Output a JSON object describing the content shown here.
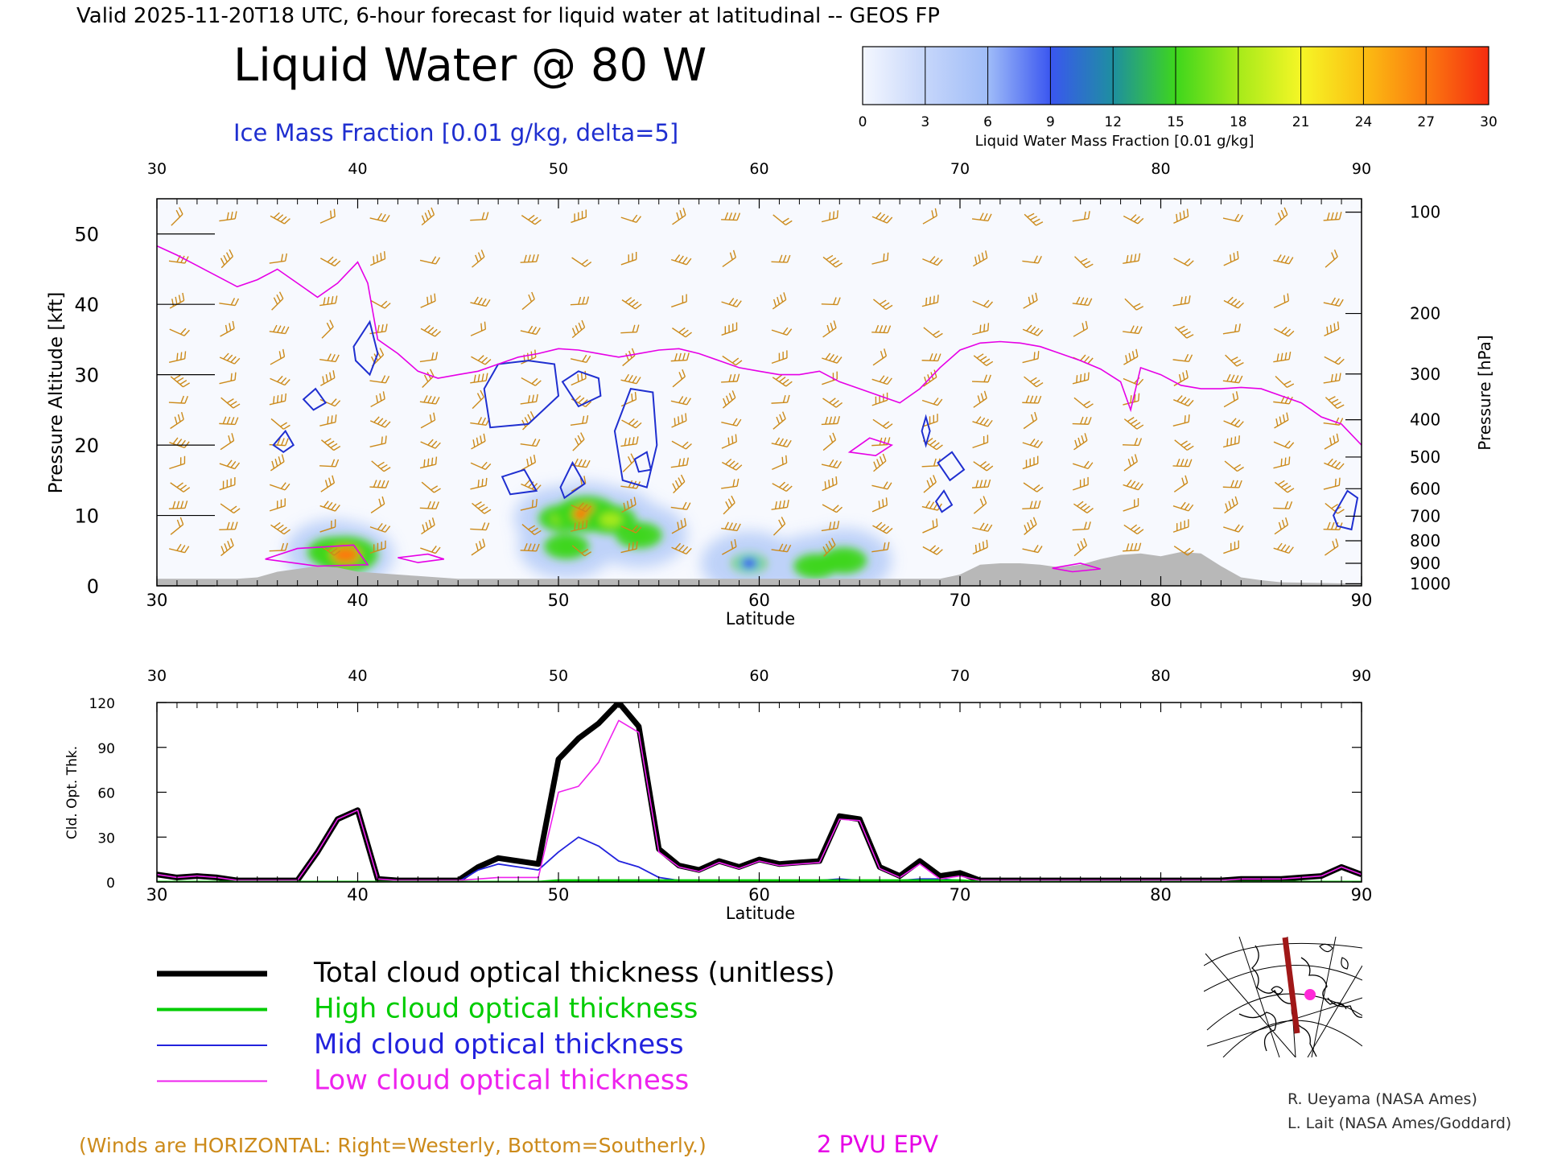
{
  "header": {
    "valid_line": "Valid 2025-11-20T18 UTC, 6-hour forecast for liquid water at latitudinal -- GEOS FP",
    "title": "Liquid Water @ 80 W",
    "subtitle": "Ice Mass Fraction [0.01 g/kg, delta=5]"
  },
  "colorbar": {
    "label": "Liquid Water Mass Fraction [0.01 g/kg]",
    "ticks": [
      "0",
      "3",
      "6",
      "9",
      "12",
      "15",
      "18",
      "21",
      "24",
      "27",
      "30"
    ],
    "colors": [
      "#f4f7ff",
      "#c6d6fa",
      "#9fbcf8",
      "#3a56f0",
      "#1e8fa0",
      "#3ed61c",
      "#a6ea1a",
      "#f6f626",
      "#fbbe12",
      "#fb7a10",
      "#f62c10"
    ]
  },
  "colors": {
    "ice_contour": "#1f2fd0",
    "liquid_water_fill": "#b8cef8",
    "epv": "#e600e6",
    "winds": "#cc8a1a",
    "terrain": "#b8b8b8",
    "total": "#000000",
    "high": "#00cc00",
    "mid": "#2222dd",
    "low": "#ee22ee",
    "credits": "#303030"
  },
  "chart_data": [
    {
      "type": "heatmap",
      "name_visible": false,
      "xlabel": "Latitude",
      "ylabel": "Pressure Altitude [kft]",
      "ylabel_right": "Pressure [hPa]",
      "xlim": [
        30,
        90
      ],
      "ylim": [
        0,
        55
      ],
      "x_ticks": [
        "30",
        "40",
        "50",
        "60",
        "70",
        "80",
        "90"
      ],
      "y_ticks": [
        "0",
        "10",
        "20",
        "30",
        "40",
        "50"
      ],
      "pressure_ticks": [
        {
          "label": "100",
          "kft": 53.1
        },
        {
          "label": "200",
          "kft": 38.7
        },
        {
          "label": "300",
          "kft": 30.1
        },
        {
          "label": "400",
          "kft": 23.6
        },
        {
          "label": "500",
          "kft": 18.3
        },
        {
          "label": "600",
          "kft": 13.8
        },
        {
          "label": "700",
          "kft": 9.9
        },
        {
          "label": "800",
          "kft": 6.4
        },
        {
          "label": "900",
          "kft": 3.2
        },
        {
          "label": "1000",
          "kft": 0.3
        }
      ],
      "epv_2pvu_line": [
        [
          30,
          48.3
        ],
        [
          31,
          47
        ],
        [
          32,
          45.5
        ],
        [
          33,
          44
        ],
        [
          34,
          42.5
        ],
        [
          35,
          43.5
        ],
        [
          36,
          45
        ],
        [
          37,
          43
        ],
        [
          38,
          41
        ],
        [
          39,
          43
        ],
        [
          40,
          46
        ],
        [
          40.5,
          43
        ],
        [
          41,
          35
        ],
        [
          42,
          33
        ],
        [
          43,
          30.5
        ],
        [
          44,
          29.5
        ],
        [
          45,
          30
        ],
        [
          46,
          30.5
        ],
        [
          47,
          31.5
        ],
        [
          48,
          32.5
        ],
        [
          49,
          33
        ],
        [
          50,
          33.7
        ],
        [
          51,
          33.5
        ],
        [
          52,
          33
        ],
        [
          53,
          32.5
        ],
        [
          54,
          33
        ],
        [
          55,
          33.5
        ],
        [
          56,
          33.7
        ],
        [
          57,
          33
        ],
        [
          58,
          32
        ],
        [
          59,
          31
        ],
        [
          60,
          30.5
        ],
        [
          61,
          30
        ],
        [
          62,
          30
        ],
        [
          63,
          30.5
        ],
        [
          64,
          29
        ],
        [
          65,
          28
        ],
        [
          66,
          27
        ],
        [
          67,
          26
        ],
        [
          68,
          28
        ],
        [
          69,
          31
        ],
        [
          70,
          33.5
        ],
        [
          71,
          34.5
        ],
        [
          72,
          34.7
        ],
        [
          73,
          34.5
        ],
        [
          74,
          34
        ],
        [
          75,
          33
        ],
        [
          76,
          32
        ],
        [
          77,
          30.8
        ],
        [
          78,
          29
        ],
        [
          78.5,
          25
        ],
        [
          79,
          31
        ],
        [
          80,
          30
        ],
        [
          81,
          28.5
        ],
        [
          82,
          28
        ],
        [
          83,
          28
        ],
        [
          84,
          28.2
        ],
        [
          85,
          28
        ],
        [
          86,
          27
        ],
        [
          87,
          26
        ],
        [
          88,
          24
        ],
        [
          89,
          23
        ],
        [
          90,
          20
        ]
      ],
      "terrain": [
        [
          30,
          1
        ],
        [
          34,
          1
        ],
        [
          35,
          1.2
        ],
        [
          36,
          2
        ],
        [
          37,
          2.4
        ],
        [
          38,
          2.8
        ],
        [
          39,
          2.6
        ],
        [
          40,
          2
        ],
        [
          41,
          1.8
        ],
        [
          42,
          1.6
        ],
        [
          43,
          1.4
        ],
        [
          44,
          1.2
        ],
        [
          45,
          1
        ],
        [
          50,
          1
        ],
        [
          55,
          1
        ],
        [
          60,
          1
        ],
        [
          65,
          1
        ],
        [
          69,
          1
        ],
        [
          70,
          1.6
        ],
        [
          71,
          3
        ],
        [
          72,
          3.2
        ],
        [
          73,
          3.2
        ],
        [
          74,
          3
        ],
        [
          75,
          2.6
        ],
        [
          76,
          3
        ],
        [
          77,
          3.8
        ],
        [
          78,
          4.4
        ],
        [
          79,
          4.6
        ],
        [
          80,
          4.2
        ],
        [
          81,
          4.8
        ],
        [
          82,
          4.6
        ],
        [
          83,
          2.8
        ],
        [
          84,
          1.2
        ],
        [
          85,
          0.8
        ],
        [
          86,
          0.5
        ],
        [
          90,
          0.3
        ]
      ],
      "liquid_water_cells": [
        {
          "lat": 38.8,
          "kft": 4.8,
          "value": 20
        },
        {
          "lat": 39.4,
          "kft": 4.4,
          "value": 28
        },
        {
          "lat": 50.2,
          "kft": 9.6,
          "value": 17
        },
        {
          "lat": 51.4,
          "kft": 10.2,
          "value": 27
        },
        {
          "lat": 52.6,
          "kft": 9.4,
          "value": 19
        },
        {
          "lat": 54.0,
          "kft": 7.2,
          "value": 16
        },
        {
          "lat": 50.4,
          "kft": 5.6,
          "value": 15
        },
        {
          "lat": 62.8,
          "kft": 2.8,
          "value": 14
        },
        {
          "lat": 64.2,
          "kft": 3.6,
          "value": 16
        },
        {
          "lat": 59.5,
          "kft": 3.2,
          "value": 9
        }
      ],
      "ice_mass_contours": [
        [
          [
            35.8,
            20
          ],
          [
            36.4,
            22
          ],
          [
            36.8,
            20
          ],
          [
            36.3,
            19
          ],
          [
            35.8,
            20
          ]
        ],
        [
          [
            37.3,
            26.5
          ],
          [
            37.9,
            28
          ],
          [
            38.4,
            26
          ],
          [
            37.8,
            25
          ],
          [
            37.3,
            26.5
          ]
        ],
        [
          [
            39.8,
            34
          ],
          [
            40.6,
            37.5
          ],
          [
            41,
            33
          ],
          [
            40.6,
            30
          ],
          [
            39.9,
            32
          ],
          [
            39.8,
            34
          ]
        ],
        [
          [
            46.3,
            28
          ],
          [
            47,
            31.5
          ],
          [
            48.5,
            32
          ],
          [
            49.8,
            31.5
          ],
          [
            50,
            27
          ],
          [
            48.5,
            23
          ],
          [
            46.6,
            22.5
          ],
          [
            46.3,
            28
          ]
        ],
        [
          [
            50.2,
            29
          ],
          [
            51,
            30.5
          ],
          [
            52,
            29.5
          ],
          [
            52.1,
            27
          ],
          [
            51,
            25.5
          ],
          [
            50.2,
            29
          ]
        ],
        [
          [
            52.8,
            22
          ],
          [
            53.6,
            28
          ],
          [
            54.7,
            27.5
          ],
          [
            54.9,
            20
          ],
          [
            54.4,
            14
          ],
          [
            53.2,
            15
          ],
          [
            52.8,
            22
          ]
        ],
        [
          [
            47.2,
            15.5
          ],
          [
            48.3,
            16.5
          ],
          [
            48.9,
            13.5
          ],
          [
            47.6,
            13
          ],
          [
            47.2,
            15.5
          ]
        ],
        [
          [
            50.1,
            14
          ],
          [
            50.7,
            17.5
          ],
          [
            51.3,
            14.5
          ],
          [
            50.3,
            12.5
          ],
          [
            50.1,
            14
          ]
        ],
        [
          [
            53.8,
            18
          ],
          [
            54.4,
            19
          ],
          [
            54.6,
            16.5
          ],
          [
            54,
            16.2
          ],
          [
            53.8,
            18
          ]
        ],
        [
          [
            68.1,
            22
          ],
          [
            68.3,
            24
          ],
          [
            68.5,
            22
          ],
          [
            68.3,
            20
          ],
          [
            68.1,
            22
          ]
        ],
        [
          [
            68.9,
            17.5
          ],
          [
            69.6,
            19
          ],
          [
            70.2,
            16.5
          ],
          [
            69.5,
            15
          ],
          [
            68.9,
            17.5
          ]
        ],
        [
          [
            68.8,
            12
          ],
          [
            69.2,
            13.5
          ],
          [
            69.6,
            11.5
          ],
          [
            69.1,
            10.5
          ],
          [
            68.8,
            12
          ]
        ],
        [
          [
            88.6,
            10
          ],
          [
            89.3,
            13.5
          ],
          [
            89.8,
            12.5
          ],
          [
            89.5,
            8
          ],
          [
            88.8,
            8.5
          ],
          [
            88.6,
            10
          ]
        ]
      ],
      "epv_small_contours": [
        [
          [
            35.4,
            3.8
          ],
          [
            37,
            5.3
          ],
          [
            39.8,
            5.8
          ],
          [
            40.5,
            3
          ],
          [
            38,
            2.8
          ],
          [
            35.4,
            3.8
          ]
        ],
        [
          [
            64.5,
            19
          ],
          [
            65.5,
            21
          ],
          [
            66.6,
            20
          ],
          [
            65.8,
            18.5
          ],
          [
            64.5,
            19
          ]
        ],
        [
          [
            42,
            4
          ],
          [
            43.5,
            4.5
          ],
          [
            44.3,
            3.8
          ],
          [
            43,
            3.3
          ],
          [
            42,
            4
          ]
        ],
        [
          [
            74.6,
            2.5
          ],
          [
            76,
            3.2
          ],
          [
            77,
            2.4
          ],
          [
            75.6,
            2
          ],
          [
            74.6,
            2.5
          ]
        ]
      ],
      "wind_barb_note": "(Winds are HORIZONTAL: Right=Westerly, Bottom=Southerly.)",
      "epv_label": "2 PVU EPV"
    },
    {
      "type": "line",
      "xlabel": "Latitude",
      "ylabel": "Cld. Opt. Thk.",
      "xlim": [
        30,
        90
      ],
      "ylim": [
        0,
        120
      ],
      "x_ticks": [
        "30",
        "40",
        "50",
        "60",
        "70",
        "80",
        "90"
      ],
      "y_ticks": [
        "0",
        "30",
        "60",
        "90",
        "120"
      ],
      "x": [
        30,
        31,
        32,
        33,
        34,
        35,
        36,
        37,
        38,
        39,
        40,
        41,
        42,
        43,
        44,
        45,
        46,
        47,
        48,
        49,
        50,
        51,
        52,
        53,
        54,
        55,
        56,
        57,
        58,
        59,
        60,
        61,
        62,
        63,
        64,
        65,
        66,
        67,
        68,
        69,
        70,
        71,
        72,
        73,
        74,
        75,
        76,
        77,
        78,
        79,
        80,
        81,
        82,
        83,
        84,
        85,
        86,
        87,
        88,
        89,
        90
      ],
      "series": [
        {
          "name": "Total cloud optical thickness (unitless)",
          "key": "total",
          "values": [
            5,
            3,
            4,
            3,
            1,
            1,
            1,
            1,
            20,
            42,
            48,
            2,
            1,
            1,
            1,
            1,
            10,
            16,
            14,
            12,
            82,
            96,
            106,
            120,
            104,
            22,
            11,
            8,
            14,
            10,
            15,
            12,
            13,
            14,
            44,
            42,
            10,
            4,
            14,
            4,
            6,
            1,
            1,
            1,
            1,
            1,
            1,
            1,
            1,
            1,
            1,
            1,
            1,
            1,
            2,
            2,
            2,
            3,
            4,
            10,
            5
          ]
        },
        {
          "name": "High cloud optical thickness",
          "key": "high",
          "values": [
            0,
            0,
            0,
            0,
            0,
            0,
            0,
            0,
            0,
            0,
            0,
            0,
            0,
            0,
            0,
            0,
            0,
            0,
            0,
            0,
            1,
            1,
            1,
            1,
            1,
            1,
            1,
            1,
            1,
            1,
            1,
            1,
            1,
            1,
            1,
            1,
            1,
            1,
            1,
            1,
            1,
            0,
            0,
            0,
            0,
            0,
            0,
            0,
            0,
            0,
            0,
            0,
            0,
            0,
            0,
            0,
            0,
            0,
            0,
            0,
            0
          ]
        },
        {
          "name": "Mid cloud optical thickness",
          "key": "mid",
          "values": [
            0,
            0,
            0,
            0,
            0,
            0,
            0,
            0,
            0,
            0,
            0,
            0,
            0,
            0,
            0,
            0,
            8,
            12,
            10,
            8,
            20,
            30,
            24,
            14,
            10,
            3,
            1,
            1,
            1,
            1,
            1,
            1,
            1,
            1,
            2,
            1,
            1,
            1,
            2,
            2,
            1,
            0,
            0,
            0,
            0,
            0,
            0,
            0,
            0,
            0,
            0,
            0,
            0,
            0,
            0,
            0,
            0,
            0,
            0,
            0,
            0
          ]
        },
        {
          "name": "Low cloud optical thickness",
          "key": "low",
          "values": [
            5,
            3,
            4,
            3,
            1,
            1,
            1,
            1,
            20,
            42,
            48,
            2,
            1,
            1,
            1,
            1,
            2,
            3,
            3,
            3,
            60,
            64,
            80,
            108,
            100,
            20,
            10,
            7,
            13,
            9,
            14,
            11,
            12,
            13,
            42,
            41,
            9,
            3,
            12,
            2,
            4,
            1,
            1,
            1,
            1,
            1,
            1,
            1,
            1,
            1,
            1,
            1,
            1,
            1,
            2,
            2,
            2,
            3,
            4,
            10,
            5
          ]
        }
      ]
    }
  ],
  "legend": {
    "items": [
      {
        "label": "Total cloud optical thickness (unitless)",
        "key": "total"
      },
      {
        "label": "High cloud optical thickness",
        "key": "high"
      },
      {
        "label": "Mid cloud optical thickness",
        "key": "mid"
      },
      {
        "label": "Low cloud optical thickness",
        "key": "low"
      }
    ]
  },
  "map_inset": {
    "icon": "globe-map-icon"
  },
  "credits": {
    "line1": "R. Ueyama (NASA Ames)",
    "line2": "L. Lait (NASA Ames/Goddard)"
  }
}
